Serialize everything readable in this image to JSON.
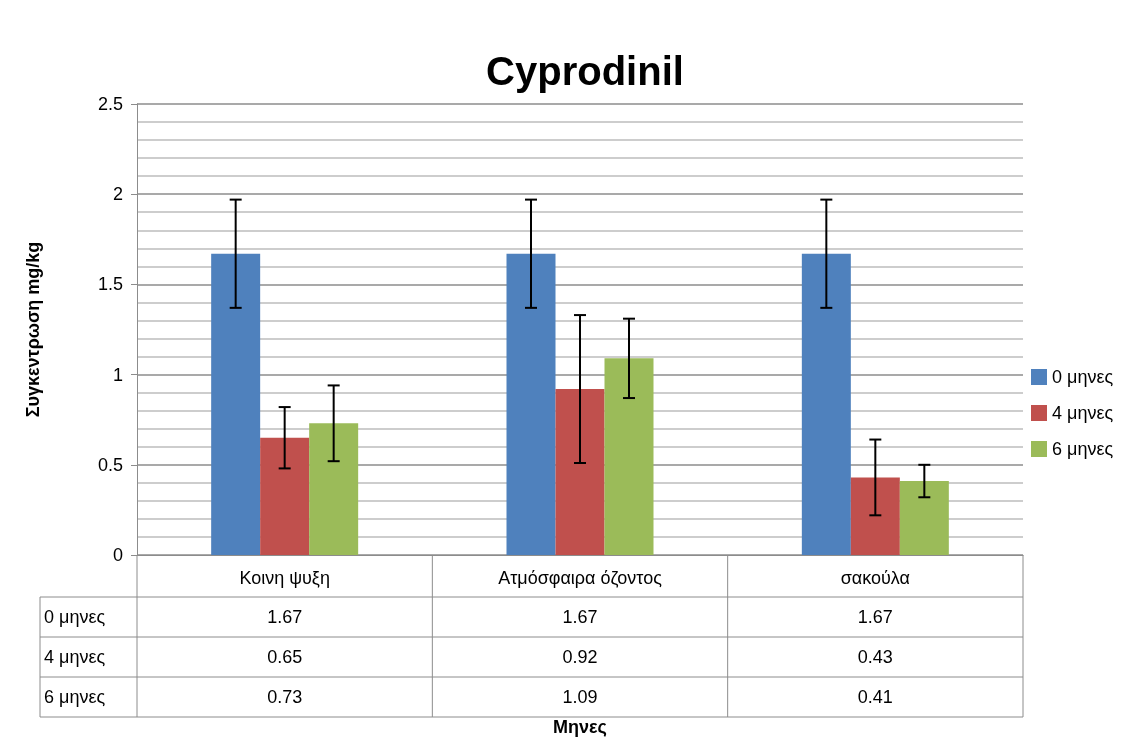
{
  "chart_data": {
    "type": "bar",
    "title": "Cyprodinil",
    "annotations": [
      "Μηνες"
    ],
    "ylabel": "Συγκεντρωση mg/kg",
    "categories": [
      "Κοινη ψυξη",
      "Ατμόσφαιρα όζοντος",
      "σακούλα"
    ],
    "series": [
      {
        "name": "0 μηνες",
        "color": "#4f81bd",
        "values": [
          1.67,
          1.67,
          1.67
        ],
        "errors": [
          0.3,
          0.3,
          0.3
        ]
      },
      {
        "name": "4 μηνες",
        "color": "#c0504d",
        "values": [
          0.65,
          0.92,
          0.43
        ],
        "errors": [
          0.17,
          0.41,
          0.21
        ]
      },
      {
        "name": "6 μηνες",
        "color": "#9bbb59",
        "values": [
          0.73,
          1.09,
          0.41
        ],
        "errors": [
          0.21,
          0.22,
          0.09
        ]
      }
    ],
    "ylim": [
      0,
      2.5
    ],
    "yticks": [
      0,
      0.5,
      1,
      1.5,
      2,
      2.5
    ],
    "grid": true,
    "legend": "right",
    "data_labels": true
  }
}
